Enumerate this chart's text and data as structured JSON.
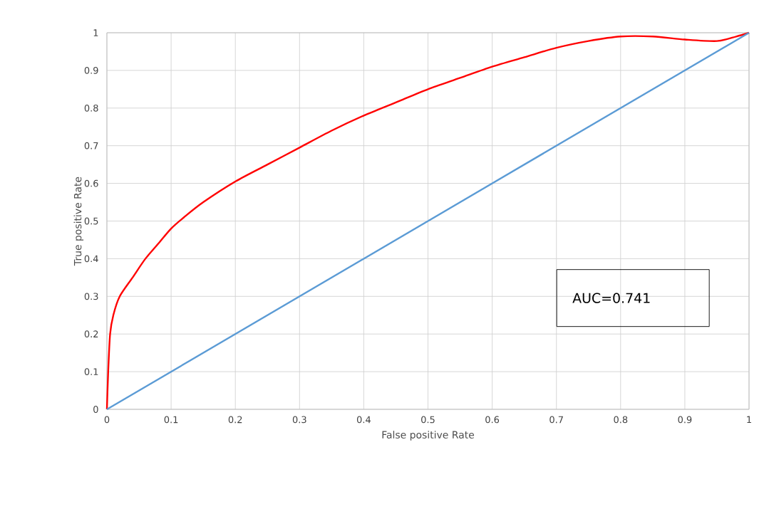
{
  "chart_data": {
    "type": "line",
    "xlabel": "False positive Rate",
    "ylabel": "True positive Rate",
    "xlim": [
      0,
      1
    ],
    "ylim": [
      0,
      1
    ],
    "xticks": [
      0,
      0.1,
      0.2,
      0.3,
      0.4,
      0.5,
      0.6,
      0.7,
      0.8,
      0.9,
      1
    ],
    "yticks": [
      0,
      0.1,
      0.2,
      0.3,
      0.4,
      0.5,
      0.6,
      0.7,
      0.8,
      0.9,
      1
    ],
    "grid": true,
    "marker": "none",
    "line_style": "solid",
    "series": [
      {
        "color": "#ff0000",
        "x": [
          0,
          0.002,
          0.005,
          0.01,
          0.02,
          0.04,
          0.06,
          0.08,
          0.1,
          0.12,
          0.15,
          0.2,
          0.25,
          0.3,
          0.35,
          0.4,
          0.45,
          0.5,
          0.55,
          0.6,
          0.65,
          0.7,
          0.75,
          0.8,
          0.85,
          0.9,
          0.95,
          0.98,
          1
        ],
        "values": [
          0,
          0.1,
          0.2,
          0.25,
          0.3,
          0.35,
          0.4,
          0.44,
          0.48,
          0.51,
          0.55,
          0.605,
          0.65,
          0.695,
          0.74,
          0.78,
          0.815,
          0.85,
          0.88,
          0.91,
          0.935,
          0.96,
          0.978,
          0.99,
          0.99,
          0.982,
          0.978,
          0.99,
          1
        ]
      },
      {
        "color": "#5b9bd5",
        "x": [
          0,
          1
        ],
        "values": [
          0,
          1
        ]
      }
    ],
    "annotations": [
      "AUC=0.741"
    ]
  }
}
